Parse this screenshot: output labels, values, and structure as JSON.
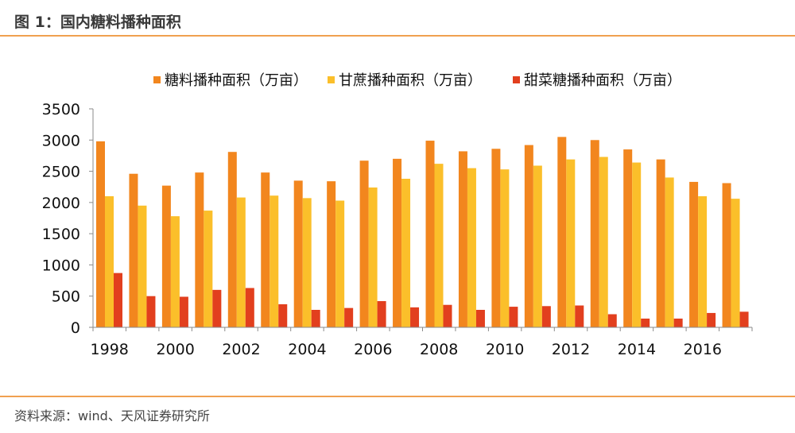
{
  "header": {
    "title": "图 1：国内糖料播种面积"
  },
  "footer": {
    "source": "资料来源：wind、天风证券研究所"
  },
  "chart_data": {
    "type": "bar",
    "categories": [
      "1998",
      "1999",
      "2000",
      "2001",
      "2002",
      "2003",
      "2004",
      "2005",
      "2006",
      "2007",
      "2008",
      "2009",
      "2010",
      "2011",
      "2012",
      "2013",
      "2014",
      "2015",
      "2016",
      "2017"
    ],
    "tick_labels": [
      "1998",
      "2000",
      "2002",
      "2004",
      "2006",
      "2008",
      "2010",
      "2012",
      "2014",
      "2016"
    ],
    "series": [
      {
        "name": "糖料播种面积（万亩）",
        "color": "#f2861e",
        "values": [
          2980,
          2460,
          2270,
          2480,
          2810,
          2480,
          2350,
          2340,
          2670,
          2700,
          2990,
          2820,
          2860,
          2920,
          3050,
          3000,
          2850,
          2690,
          2330,
          2310
        ]
      },
      {
        "name": "甘蔗播种面积（万亩）",
        "color": "#fbbf2a",
        "values": [
          2100,
          1950,
          1780,
          1870,
          2080,
          2110,
          2070,
          2030,
          2240,
          2380,
          2620,
          2550,
          2530,
          2590,
          2690,
          2730,
          2640,
          2400,
          2100,
          2060
        ]
      },
      {
        "name": "甜菜糖播种面积（万亩）",
        "color": "#e23f1e",
        "values": [
          870,
          500,
          490,
          600,
          630,
          370,
          280,
          310,
          420,
          320,
          360,
          280,
          330,
          340,
          350,
          210,
          140,
          140,
          230,
          250
        ]
      }
    ],
    "ylim": [
      0,
      3500
    ],
    "yticks": [
      0,
      500,
      1000,
      1500,
      2000,
      2500,
      3000,
      3500
    ],
    "legend": "top"
  }
}
